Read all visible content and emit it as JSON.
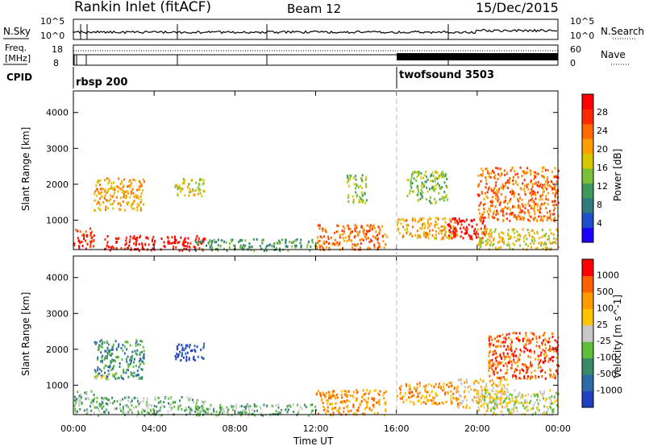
{
  "header": {
    "station": "Rankin Inlet (fitACF)",
    "beam": "Beam 12",
    "date": "15/Dec/2015"
  },
  "noise_panel": {
    "left_label": "N.Sky",
    "right_label": "N.Search",
    "left_ticks": [
      "10^5",
      "10^0"
    ],
    "right_ticks": [
      "10^5",
      "10^0"
    ]
  },
  "freq_panel": {
    "left_label_1": "Freq.",
    "left_label_2": "[MHz]",
    "right_label": "Nave",
    "left_ticks": [
      "18",
      "8"
    ],
    "right_ticks": [
      "60",
      "0"
    ]
  },
  "cpid": {
    "label": "CPID",
    "programs": [
      {
        "name": "rbsp 200",
        "start_hour": 0
      },
      {
        "name": "twofsound 3503",
        "start_hour": 16
      }
    ]
  },
  "chart_data": [
    {
      "type": "heatmap",
      "title": "",
      "xlabel": "",
      "ylabel": "Slant Range [km]",
      "x_ticks": [
        "00:00",
        "04:00",
        "08:00",
        "12:00",
        "16:00",
        "20:00",
        "00:00"
      ],
      "y_ticks": [
        1000,
        2000,
        3000,
        4000
      ],
      "xlim_hours": [
        0,
        24
      ],
      "ylim_km": [
        180,
        4600
      ],
      "colorbar": {
        "label": "Power [dB]",
        "ticks": [
          "28",
          "24",
          "20",
          "16",
          "12",
          "8",
          "4"
        ],
        "colors": [
          "#1e00ff",
          "#1f4fc8",
          "#2f7a7a",
          "#3d9a5a",
          "#7cc03a",
          "#d6c800",
          "#ff9e00",
          "#ff6a00",
          "#ff2a00",
          "#ff0000"
        ]
      },
      "scatter_regions": [
        {
          "hours": [
            0.0,
            1.0
          ],
          "km": [
            180,
            800
          ],
          "level": 8
        },
        {
          "hours": [
            1.5,
            6.5
          ],
          "km": [
            180,
            600
          ],
          "level": 9
        },
        {
          "hours": [
            1.0,
            3.5
          ],
          "km": [
            1300,
            2200
          ],
          "level": 6
        },
        {
          "hours": [
            5.0,
            6.5
          ],
          "km": [
            1700,
            2200
          ],
          "level": 5
        },
        {
          "hours": [
            6.0,
            12.0
          ],
          "km": [
            180,
            500
          ],
          "level": 3
        },
        {
          "hours": [
            12.0,
            15.5
          ],
          "km": [
            200,
            900
          ],
          "level": 7
        },
        {
          "hours": [
            13.5,
            14.5
          ],
          "km": [
            1500,
            2300
          ],
          "level": 4
        },
        {
          "hours": [
            16.5,
            18.5
          ],
          "km": [
            1500,
            2400
          ],
          "level": 4
        },
        {
          "hours": [
            16.0,
            19.0
          ],
          "km": [
            500,
            1100
          ],
          "level": 6
        },
        {
          "hours": [
            18.5,
            20.5
          ],
          "km": [
            500,
            1100
          ],
          "level": 9
        },
        {
          "hours": [
            20.0,
            24.0
          ],
          "km": [
            1000,
            2500
          ],
          "level": 7
        },
        {
          "hours": [
            20.0,
            24.0
          ],
          "km": [
            200,
            800
          ],
          "level": 5
        }
      ]
    },
    {
      "type": "heatmap",
      "title": "",
      "xlabel": "Time UT",
      "ylabel": "Slant Range [km]",
      "x_ticks": [
        "00:00",
        "04:00",
        "08:00",
        "12:00",
        "16:00",
        "20:00",
        "00:00"
      ],
      "y_ticks": [
        1000,
        2000,
        3000,
        4000
      ],
      "xlim_hours": [
        0,
        24
      ],
      "ylim_km": [
        180,
        4600
      ],
      "colorbar": {
        "label": "Velocity [m s^-1]",
        "ticks": [
          "1000",
          "500",
          "100",
          "25",
          "-25",
          "-100",
          "-500",
          "-1000"
        ],
        "colors": [
          "#2040c0",
          "#2f6aa8",
          "#3a8a6a",
          "#5fbf3a",
          "#c8c8c8",
          "#ffc400",
          "#ff9a00",
          "#ff6000",
          "#ff0000"
        ]
      },
      "scatter_regions": [
        {
          "hours": [
            0.0,
            1.0
          ],
          "km": [
            180,
            900
          ],
          "level": 3
        },
        {
          "hours": [
            1.0,
            6.5
          ],
          "km": [
            180,
            700
          ],
          "level": 3
        },
        {
          "hours": [
            1.0,
            3.5
          ],
          "km": [
            1200,
            2300
          ],
          "level": 2
        },
        {
          "hours": [
            1.0,
            2.0
          ],
          "km": [
            1200,
            1400
          ],
          "level": 4
        },
        {
          "hours": [
            5.0,
            6.5
          ],
          "km": [
            1700,
            2200
          ],
          "level": 0
        },
        {
          "hours": [
            6.0,
            12.0
          ],
          "km": [
            180,
            500
          ],
          "level": 3
        },
        {
          "hours": [
            12.0,
            15.5
          ],
          "km": [
            200,
            900
          ],
          "level": 6
        },
        {
          "hours": [
            16.0,
            19.0
          ],
          "km": [
            500,
            1100
          ],
          "level": 6
        },
        {
          "hours": [
            19.0,
            21.5
          ],
          "km": [
            400,
            1200
          ],
          "level": 5
        },
        {
          "hours": [
            20.5,
            24.0
          ],
          "km": [
            1200,
            2500
          ],
          "level": 7
        },
        {
          "hours": [
            20.0,
            24.0
          ],
          "km": [
            200,
            900
          ],
          "level": 4
        }
      ]
    }
  ]
}
